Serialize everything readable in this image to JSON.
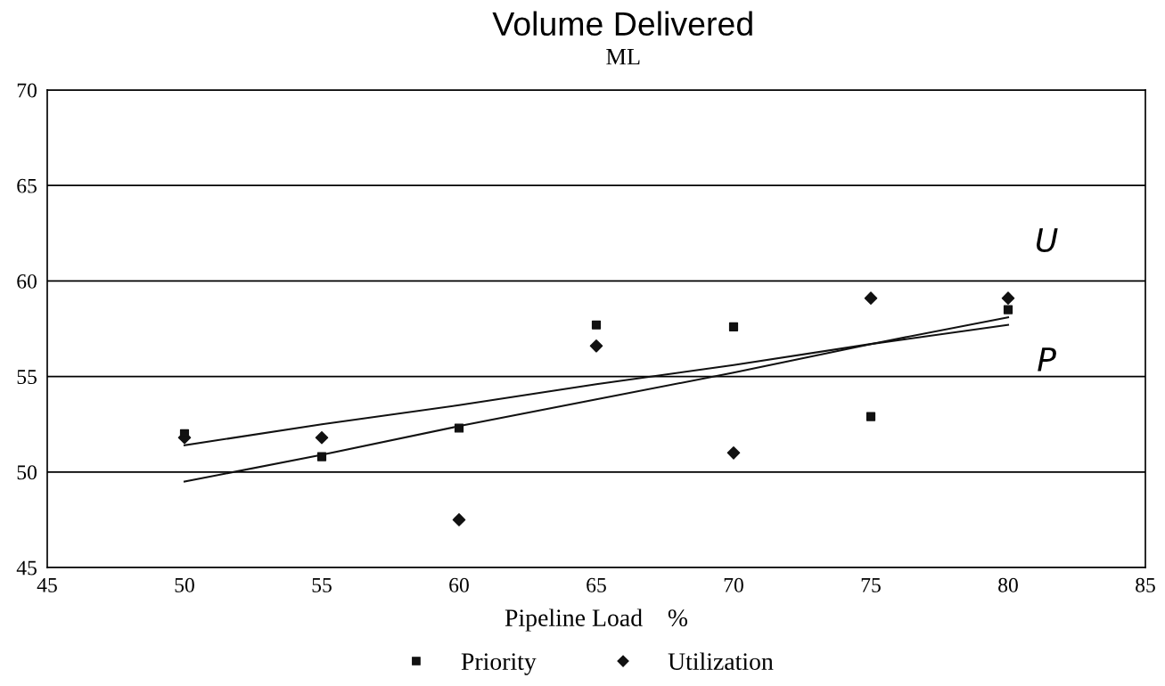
{
  "chart_data": {
    "type": "scatter",
    "title": "Volume Delivered",
    "subtitle": "ML",
    "xlabel": "Pipeline Load    %",
    "x": [
      50,
      55,
      60,
      65,
      70,
      75,
      80
    ],
    "series": [
      {
        "name": "Priority",
        "color": "#111111",
        "marker": "square",
        "values": [
          52.0,
          50.8,
          52.3,
          57.7,
          57.6,
          52.9,
          58.5
        ]
      },
      {
        "name": "Utilization",
        "color": "#111111",
        "marker": "diamond",
        "values": [
          51.8,
          51.8,
          47.5,
          56.6,
          51.0,
          59.1,
          59.1
        ]
      },
      {
        "type": "line",
        "color": "#111111",
        "marker": "none",
        "values": [
          51.4,
          52.5,
          53.5,
          54.6,
          55.6,
          56.7,
          57.7
        ]
      },
      {
        "type": "line",
        "color": "#111111",
        "marker": "none",
        "values": [
          49.5,
          50.9,
          52.4,
          53.8,
          55.2,
          56.7,
          58.1
        ]
      }
    ],
    "annotations": [
      "U",
      "P"
    ],
    "xlim": [
      45,
      85
    ],
    "xticks": [
      45,
      50,
      55,
      60,
      65,
      70,
      75,
      80,
      85
    ],
    "ylim": [
      45,
      70
    ],
    "yticks": [
      45,
      50,
      55,
      60,
      65,
      70
    ],
    "grid": "y",
    "legend": "bottom"
  }
}
